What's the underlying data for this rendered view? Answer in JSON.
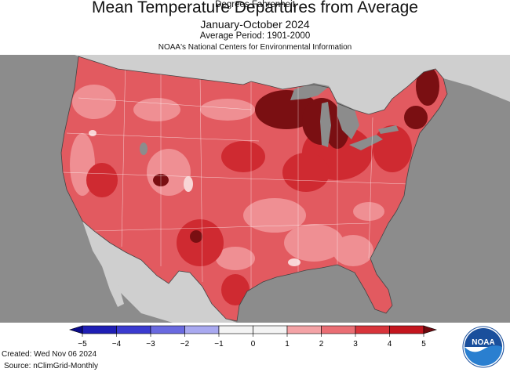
{
  "header": {
    "title": "Mean Temperature Departures from Average",
    "period": "January-October 2024",
    "average_period": "Average Period: 1901-2000",
    "source_org": "NOAA's National Centers for Environmental Information"
  },
  "legend": {
    "ticks": [
      "−5",
      "−4",
      "−3",
      "−2",
      "−1",
      "0",
      "1",
      "2",
      "3",
      "4",
      "5"
    ],
    "bins": [
      {
        "range": "-5 to -4",
        "color": "#1f1fb5"
      },
      {
        "range": "-4 to -3",
        "color": "#3b3bd0"
      },
      {
        "range": "-3 to -2",
        "color": "#6a6ae0"
      },
      {
        "range": "-2 to -1",
        "color": "#a9a9f0"
      },
      {
        "range": "-1 to 0",
        "color": "#f4f4f4"
      },
      {
        "range": "0 to 1",
        "color": "#f4f4f4"
      },
      {
        "range": "1 to 2",
        "color": "#f4a3a6"
      },
      {
        "range": "2 to 3",
        "color": "#ea6e74"
      },
      {
        "range": "3 to 4",
        "color": "#d8343b"
      },
      {
        "range": "4 to 5",
        "color": "#c4161f"
      }
    ],
    "unit_label": "Degrees Fahrenheit"
  },
  "map": {
    "ocean_color": "#8c8c8c",
    "land_outside_color": "#cfcfcf",
    "dominant_color": "#e25a60",
    "extreme_color": "#7a0f12",
    "hotspots": [
      "Upper Midwest / Great Lakes (>5)",
      "Northern New England (>5)",
      "New Mexico (>4)"
    ]
  },
  "footer": {
    "created": "Created: Wed Nov 06 2024",
    "source": "Source: nClimGrid-Monthly"
  },
  "logo": {
    "text": "NOAA"
  }
}
